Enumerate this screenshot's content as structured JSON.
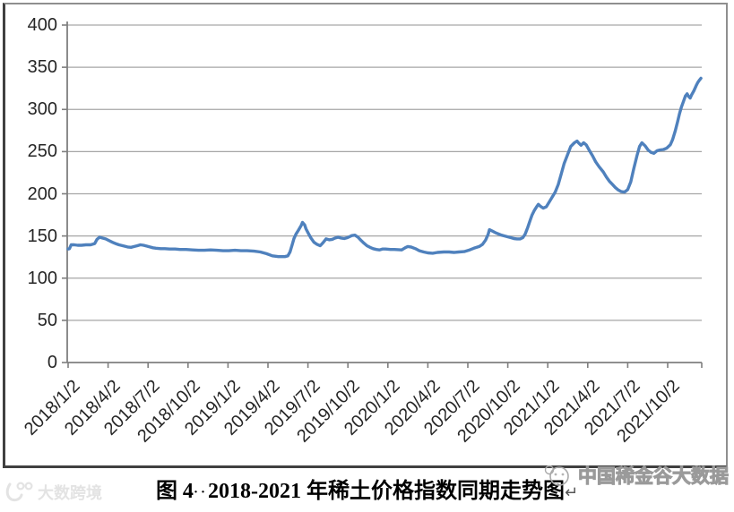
{
  "caption": {
    "prefix": "图 4",
    "dots": "··",
    "body": "2018-2021 年稀土价格指数同期走势图",
    "paragraph_mark": "↵"
  },
  "watermark_right": {
    "logo_icon": "panda-circle-logo",
    "text": "中国稀金谷大数据"
  },
  "watermark_left": {
    "logo_icon": "smile-100-logo",
    "text": "大数跨境"
  },
  "chart_data": {
    "type": "line",
    "title": "",
    "xlabel": "",
    "ylabel": "",
    "ylim": [
      0,
      400
    ],
    "yticks": [
      400,
      350,
      300,
      250,
      200,
      150,
      100,
      50,
      0
    ],
    "xticks": [
      "2018/1/2",
      "2018/4/2",
      "2018/7/2",
      "2018/10/2",
      "2019/1/2",
      "2019/4/2",
      "2019/7/2",
      "2019/10/2",
      "2020/1/2",
      "2020/4/2",
      "2020/7/2",
      "2020/10/2",
      "2021/1/2",
      "2021/4/2",
      "2021/7/2",
      "2021/10/2"
    ],
    "grid": true,
    "legend": false,
    "line_color": "#4F81BD",
    "gridline_color": "#a6a6a6",
    "axis_color": "#7f7f7f",
    "tick_label_color": "#262626",
    "x_tick_rotation": 45,
    "series": [
      {
        "points": [
          [
            "2018/1/2",
            134.5
          ],
          [
            "2018/1/5",
            135
          ],
          [
            "2018/1/9",
            139.5
          ],
          [
            "2018/1/16",
            139.5
          ],
          [
            "2018/1/24",
            139
          ],
          [
            "2018/2/2",
            139
          ],
          [
            "2018/2/12",
            139.5
          ],
          [
            "2018/2/23",
            139.5
          ],
          [
            "2018/3/2",
            141
          ],
          [
            "2018/3/7",
            146
          ],
          [
            "2018/3/13",
            148.5
          ],
          [
            "2018/3/20",
            147.5
          ],
          [
            "2018/3/27",
            146.5
          ],
          [
            "2018/4/4",
            144.5
          ],
          [
            "2018/4/12",
            142.5
          ],
          [
            "2018/4/19",
            141
          ],
          [
            "2018/4/27",
            139.5
          ],
          [
            "2018/5/8",
            138
          ],
          [
            "2018/5/16",
            137
          ],
          [
            "2018/5/24",
            136.5
          ],
          [
            "2018/6/1",
            137.5
          ],
          [
            "2018/6/8",
            138.5
          ],
          [
            "2018/6/15",
            139.5
          ],
          [
            "2018/6/22",
            139
          ],
          [
            "2018/6/29",
            138
          ],
          [
            "2018/7/6",
            137
          ],
          [
            "2018/7/13",
            136
          ],
          [
            "2018/7/20",
            135.5
          ],
          [
            "2018/7/31",
            135
          ],
          [
            "2018/8/10",
            135
          ],
          [
            "2018/8/21",
            134.5
          ],
          [
            "2018/9/3",
            134.5
          ],
          [
            "2018/9/14",
            134
          ],
          [
            "2018/9/28",
            134
          ],
          [
            "2018/10/12",
            133.5
          ],
          [
            "2018/10/26",
            133
          ],
          [
            "2018/11/9",
            133
          ],
          [
            "2018/11/23",
            133.5
          ],
          [
            "2018/12/7",
            133
          ],
          [
            "2018/12/21",
            132.5
          ],
          [
            "2019/1/4",
            132.5
          ],
          [
            "2019/1/18",
            133
          ],
          [
            "2019/2/1",
            132.5
          ],
          [
            "2019/2/15",
            132.5
          ],
          [
            "2019/3/1",
            132
          ],
          [
            "2019/3/15",
            131
          ],
          [
            "2019/3/29",
            129
          ],
          [
            "2019/4/12",
            126.5
          ],
          [
            "2019/4/26",
            125.5
          ],
          [
            "2019/5/10",
            125.5
          ],
          [
            "2019/5/17",
            126.5
          ],
          [
            "2019/5/22",
            131
          ],
          [
            "2019/5/27",
            140
          ],
          [
            "2019/5/31",
            147
          ],
          [
            "2019/6/5",
            152
          ],
          [
            "2019/6/11",
            157
          ],
          [
            "2019/6/17",
            162.5
          ],
          [
            "2019/6/20",
            166
          ],
          [
            "2019/6/25",
            163
          ],
          [
            "2019/6/28",
            158.5
          ],
          [
            "2019/7/3",
            153
          ],
          [
            "2019/7/9",
            147.5
          ],
          [
            "2019/7/16",
            142.5
          ],
          [
            "2019/7/23",
            140
          ],
          [
            "2019/7/30",
            138.5
          ],
          [
            "2019/8/6",
            142
          ],
          [
            "2019/8/13",
            146.5
          ],
          [
            "2019/8/20",
            145.5
          ],
          [
            "2019/8/27",
            146
          ],
          [
            "2019/9/3",
            147.5
          ],
          [
            "2019/9/10",
            148.5
          ],
          [
            "2019/9/17",
            147.5
          ],
          [
            "2019/9/24",
            147
          ],
          [
            "2019/10/1",
            148
          ],
          [
            "2019/10/11",
            150.5
          ],
          [
            "2019/10/18",
            151
          ],
          [
            "2019/10/25",
            148.5
          ],
          [
            "2019/11/1",
            145
          ],
          [
            "2019/11/8",
            141.5
          ],
          [
            "2019/11/15",
            138.5
          ],
          [
            "2019/11/22",
            136.5
          ],
          [
            "2019/11/29",
            135
          ],
          [
            "2019/12/6",
            134
          ],
          [
            "2019/12/13",
            133.5
          ],
          [
            "2019/12/20",
            134.5
          ],
          [
            "2019/12/27",
            134.5
          ],
          [
            "2020/1/8",
            134
          ],
          [
            "2020/1/17",
            134
          ],
          [
            "2020/2/3",
            133.5
          ],
          [
            "2020/2/11",
            136
          ],
          [
            "2020/2/17",
            137.5
          ],
          [
            "2020/2/24",
            137
          ],
          [
            "2020/3/4",
            135
          ],
          [
            "2020/3/13",
            132.5
          ],
          [
            "2020/3/23",
            131
          ],
          [
            "2020/4/2",
            130
          ],
          [
            "2020/4/13",
            129.5
          ],
          [
            "2020/4/24",
            130.5
          ],
          [
            "2020/5/8",
            131
          ],
          [
            "2020/5/20",
            131
          ],
          [
            "2020/6/1",
            130.5
          ],
          [
            "2020/6/12",
            131
          ],
          [
            "2020/6/24",
            131.5
          ],
          [
            "2020/7/6",
            133.5
          ],
          [
            "2020/7/16",
            135.5
          ],
          [
            "2020/7/28",
            137.5
          ],
          [
            "2020/8/5",
            140
          ],
          [
            "2020/8/12",
            145
          ],
          [
            "2020/8/18",
            152
          ],
          [
            "2020/8/21",
            157.5
          ],
          [
            "2020/8/27",
            156
          ],
          [
            "2020/9/4",
            154
          ],
          [
            "2020/9/11",
            152.5
          ],
          [
            "2020/9/18",
            151
          ],
          [
            "2020/9/25",
            150
          ],
          [
            "2020/10/9",
            148
          ],
          [
            "2020/10/16",
            147
          ],
          [
            "2020/10/23",
            146.5
          ],
          [
            "2020/10/30",
            146.5
          ],
          [
            "2020/11/6",
            148
          ],
          [
            "2020/11/11",
            152
          ],
          [
            "2020/11/17",
            160
          ],
          [
            "2020/11/23",
            169
          ],
          [
            "2020/11/27",
            175
          ],
          [
            "2020/12/2",
            180.5
          ],
          [
            "2020/12/8",
            185.5
          ],
          [
            "2020/12/11",
            187.5
          ],
          [
            "2020/12/16",
            185
          ],
          [
            "2020/12/22",
            183
          ],
          [
            "2020/12/29",
            184.5
          ],
          [
            "2021/1/5",
            190
          ],
          [
            "2021/1/12",
            196
          ],
          [
            "2021/1/19",
            202
          ],
          [
            "2021/1/26",
            211
          ],
          [
            "2021/2/2",
            223
          ],
          [
            "2021/2/9",
            236
          ],
          [
            "2021/2/18",
            248
          ],
          [
            "2021/2/24",
            256
          ],
          [
            "2021/3/2",
            260.5
          ],
          [
            "2021/3/8",
            262.5
          ],
          [
            "2021/3/12",
            260
          ],
          [
            "2021/3/17",
            257.5
          ],
          [
            "2021/3/23",
            260.5
          ],
          [
            "2021/3/29",
            258
          ],
          [
            "2021/4/6",
            251
          ],
          [
            "2021/4/13",
            245
          ],
          [
            "2021/4/20",
            238
          ],
          [
            "2021/4/28",
            232
          ],
          [
            "2021/5/7",
            226
          ],
          [
            "2021/5/14",
            220
          ],
          [
            "2021/5/21",
            215
          ],
          [
            "2021/5/28",
            211
          ],
          [
            "2021/6/4",
            207.5
          ],
          [
            "2021/6/11",
            204.5
          ],
          [
            "2021/6/18",
            202.5
          ],
          [
            "2021/6/25",
            202
          ],
          [
            "2021/7/2",
            205
          ],
          [
            "2021/7/9",
            214
          ],
          [
            "2021/7/16",
            230
          ],
          [
            "2021/7/23",
            245
          ],
          [
            "2021/7/29",
            256
          ],
          [
            "2021/8/4",
            260.5
          ],
          [
            "2021/8/11",
            257
          ],
          [
            "2021/8/18",
            252
          ],
          [
            "2021/8/25",
            249
          ],
          [
            "2021/9/1",
            248
          ],
          [
            "2021/9/8",
            251
          ],
          [
            "2021/9/15",
            252
          ],
          [
            "2021/9/23",
            252.5
          ],
          [
            "2021/9/30",
            254
          ],
          [
            "2021/10/8",
            258
          ],
          [
            "2021/10/13",
            264
          ],
          [
            "2021/10/19",
            274
          ],
          [
            "2021/10/25",
            286
          ],
          [
            "2021/10/29",
            295
          ],
          [
            "2021/11/3",
            303
          ],
          [
            "2021/11/8",
            310
          ],
          [
            "2021/11/12",
            316
          ],
          [
            "2021/11/16",
            318.5
          ],
          [
            "2021/11/19",
            315.5
          ],
          [
            "2021/11/23",
            313.5
          ],
          [
            "2021/11/26",
            317
          ],
          [
            "2021/12/1",
            322
          ],
          [
            "2021/12/6",
            328
          ],
          [
            "2021/12/10",
            332
          ],
          [
            "2021/12/14",
            335
          ],
          [
            "2021/12/17",
            337
          ]
        ]
      }
    ]
  }
}
